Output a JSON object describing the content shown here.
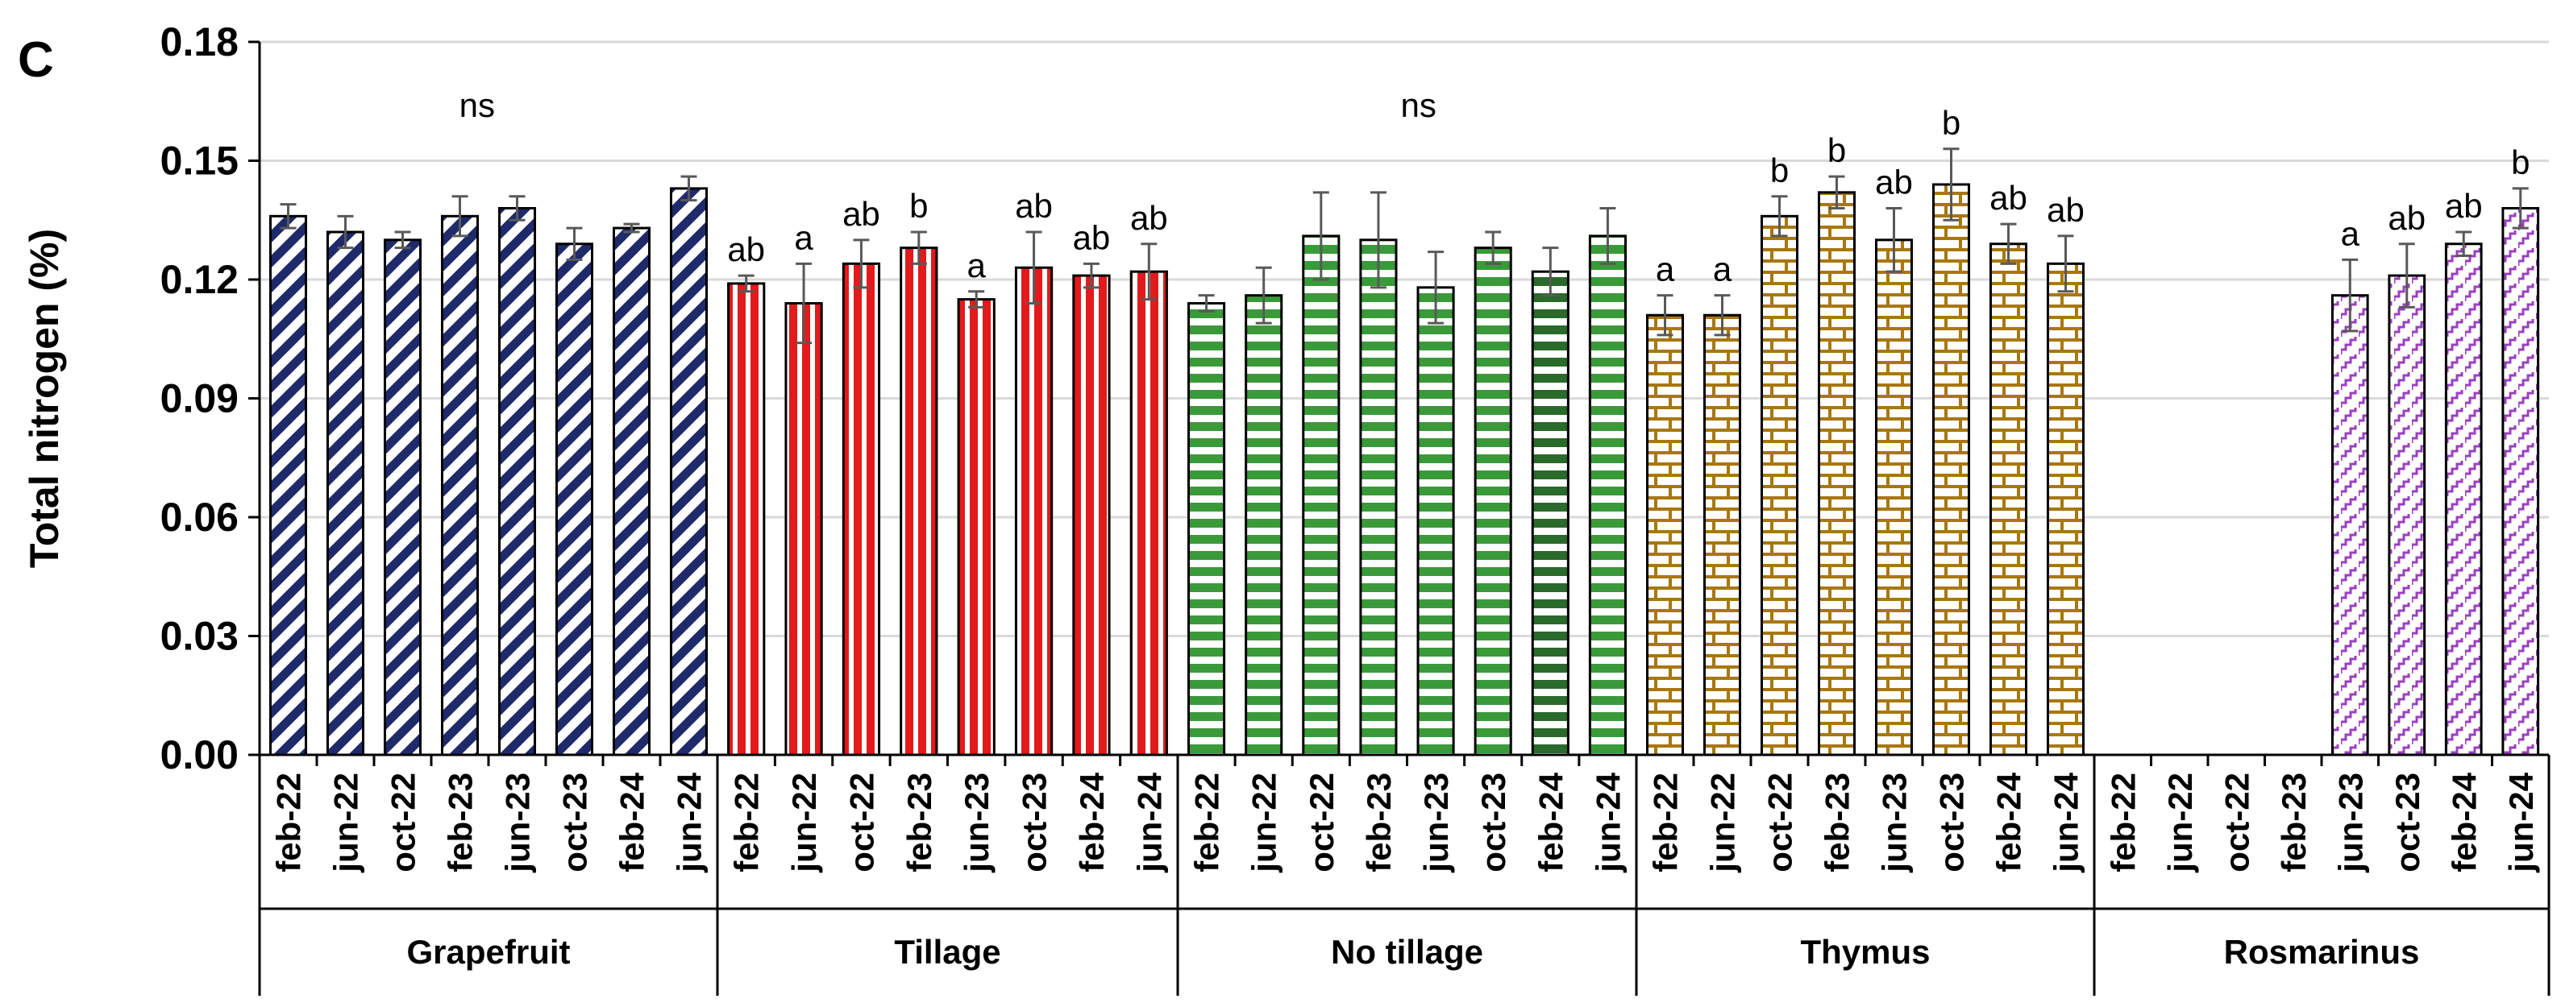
{
  "chart_data": {
    "type": "bar",
    "panel_label": "C",
    "ylabel": "Total nitrogen (%)",
    "ylim": [
      0,
      0.18
    ],
    "yticks": [
      "0.00",
      "0.03",
      "0.06",
      "0.09",
      "0.12",
      "0.15",
      "0.18"
    ],
    "ytick_values": [
      0,
      0.03,
      0.06,
      0.09,
      0.12,
      0.15,
      0.18
    ],
    "grid": true,
    "categories": [
      "feb-22",
      "jun-22",
      "oct-22",
      "feb-23",
      "jun-23",
      "oct-23",
      "feb-24",
      "jun-24"
    ],
    "groups": [
      {
        "name": "Grapefruit",
        "color": "#1f2a6b",
        "pattern": "diagonal",
        "group_annotation": "ns",
        "values": [
          0.136,
          0.132,
          0.13,
          0.136,
          0.138,
          0.129,
          0.133,
          0.143
        ],
        "errors": [
          0.003,
          0.004,
          0.002,
          0.005,
          0.003,
          0.004,
          0.001,
          0.003
        ],
        "letters": [
          "",
          "",
          "",
          "",
          "",
          "",
          "",
          ""
        ]
      },
      {
        "name": "Tillage",
        "color": "#e31a1c",
        "pattern": "vertical",
        "group_annotation": "",
        "values": [
          0.119,
          0.114,
          0.124,
          0.128,
          0.115,
          0.123,
          0.121,
          0.122
        ],
        "errors": [
          0.002,
          0.01,
          0.006,
          0.004,
          0.002,
          0.009,
          0.003,
          0.007
        ],
        "letters": [
          "ab",
          "a",
          "ab",
          "b",
          "a",
          "ab",
          "ab",
          "ab"
        ]
      },
      {
        "name": "No tillage",
        "color": "#3a9a3a",
        "pattern": "horizontal",
        "group_annotation": "ns",
        "values": [
          0.114,
          0.116,
          0.131,
          0.13,
          0.118,
          0.128,
          0.122,
          0.131
        ],
        "errors": [
          0.002,
          0.007,
          0.011,
          0.012,
          0.009,
          0.004,
          0.006,
          0.007
        ],
        "letters": [
          "",
          "",
          "",
          "",
          "",
          "",
          "",
          ""
        ]
      },
      {
        "name": "Thymus",
        "color": "#a8770e",
        "pattern": "brick",
        "group_annotation": "",
        "values": [
          0.111,
          0.111,
          0.136,
          0.142,
          0.13,
          0.144,
          0.129,
          0.124
        ],
        "errors": [
          0.005,
          0.005,
          0.005,
          0.004,
          0.008,
          0.009,
          0.005,
          0.007
        ],
        "letters": [
          "a",
          "a",
          "b",
          "b",
          "ab",
          "b",
          "ab",
          "ab"
        ]
      },
      {
        "name": "Rosmarinus",
        "color": "#9b3fc0",
        "pattern": "zigzag",
        "group_annotation": "",
        "values": [
          null,
          null,
          null,
          null,
          0.116,
          0.121,
          0.129,
          0.138
        ],
        "errors": [
          null,
          null,
          null,
          null,
          0.009,
          0.008,
          0.003,
          0.005
        ],
        "letters": [
          "",
          "",
          "",
          "",
          "a",
          "ab",
          "ab",
          "b"
        ]
      }
    ]
  }
}
